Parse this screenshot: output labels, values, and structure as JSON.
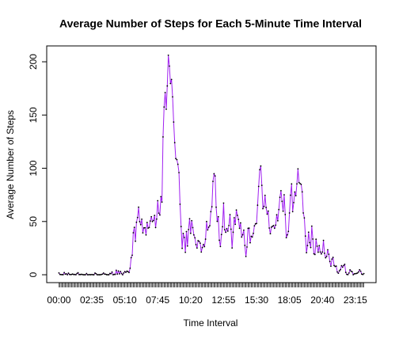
{
  "chart_data": {
    "type": "line",
    "title": "Average Number of Steps for Each 5-Minute Time Interval",
    "x_label": "Time Interval",
    "y_label": "Average Number of Steps",
    "line_color": "#a020f0",
    "point_color": "#000000",
    "ylim": [
      -7.4,
      214.9
    ],
    "yticks": [
      0,
      50,
      100,
      150,
      200
    ],
    "categories": [
      "00:00",
      null,
      null,
      null,
      null,
      null,
      null,
      null,
      null,
      null,
      null,
      null,
      null,
      null,
      null,
      null,
      null,
      null,
      null,
      null,
      null,
      null,
      null,
      null,
      null,
      null,
      null,
      null,
      null,
      null,
      null,
      "02:35",
      null,
      null,
      null,
      null,
      null,
      null,
      null,
      null,
      null,
      null,
      null,
      null,
      null,
      null,
      null,
      null,
      null,
      null,
      null,
      null,
      null,
      null,
      null,
      null,
      null,
      null,
      null,
      null,
      null,
      null,
      "05:10",
      null,
      null,
      null,
      null,
      null,
      null,
      null,
      null,
      null,
      null,
      null,
      null,
      null,
      null,
      null,
      null,
      null,
      null,
      null,
      null,
      null,
      null,
      null,
      null,
      null,
      null,
      null,
      null,
      null,
      null,
      "07:45",
      null,
      null,
      null,
      null,
      null,
      null,
      null,
      null,
      null,
      null,
      null,
      null,
      null,
      null,
      null,
      null,
      null,
      null,
      null,
      null,
      null,
      null,
      null,
      null,
      null,
      null,
      null,
      null,
      null,
      null,
      "10:20",
      null,
      null,
      null,
      null,
      null,
      null,
      null,
      null,
      null,
      null,
      null,
      null,
      null,
      null,
      null,
      null,
      null,
      null,
      null,
      null,
      null,
      null,
      null,
      null,
      null,
      null,
      null,
      null,
      null,
      null,
      "12:55",
      null,
      null,
      null,
      null,
      null,
      null,
      null,
      null,
      null,
      null,
      null,
      null,
      null,
      null,
      null,
      null,
      null,
      null,
      null,
      null,
      null,
      null,
      null,
      null,
      null,
      null,
      null,
      null,
      null,
      null,
      "15:30",
      null,
      null,
      null,
      null,
      null,
      null,
      null,
      null,
      null,
      null,
      null,
      null,
      null,
      null,
      null,
      null,
      null,
      null,
      null,
      null,
      null,
      null,
      null,
      null,
      null,
      null,
      null,
      null,
      null,
      null,
      "18:05",
      null,
      null,
      null,
      null,
      null,
      null,
      null,
      null,
      null,
      null,
      null,
      null,
      null,
      null,
      null,
      null,
      null,
      null,
      null,
      null,
      null,
      null,
      null,
      null,
      null,
      null,
      null,
      null,
      null,
      null,
      "20:40",
      null,
      null,
      null,
      null,
      null,
      null,
      null,
      null,
      null,
      null,
      null,
      null,
      null,
      null,
      null,
      null,
      null,
      null,
      null,
      null,
      null,
      null,
      null,
      null,
      null,
      null,
      null,
      null,
      null,
      null,
      "23:15",
      null,
      null,
      null,
      null,
      null,
      null,
      null,
      null
    ],
    "values": [
      1.72,
      0.34,
      0.13,
      0.15,
      0.08,
      2.09,
      0.53,
      0.87,
      0,
      1.47,
      0.3,
      0.13,
      0.32,
      0.68,
      0.15,
      0.34,
      0,
      1.11,
      1.83,
      0.17,
      0.17,
      0.38,
      0.26,
      0,
      0,
      0,
      1.13,
      0,
      0,
      0.13,
      0,
      0.23,
      0,
      0,
      1.55,
      0.94,
      0,
      0,
      0,
      0,
      0.21,
      0.62,
      1.62,
      0.58,
      0.49,
      0.08,
      0,
      0,
      1.19,
      0.94,
      2.57,
      0,
      0.34,
      0.36,
      4.11,
      0.66,
      3.49,
      0.83,
      3.11,
      1.11,
      0,
      1.57,
      3,
      2.25,
      3.32,
      2.96,
      2.09,
      6.06,
      16.02,
      18.34,
      39.45,
      44.49,
      31.49,
      49.26,
      53.77,
      63.45,
      49.96,
      47.08,
      52.15,
      39.34,
      44.02,
      44.17,
      37.36,
      49.04,
      43.81,
      44.38,
      50.51,
      54.51,
      49.92,
      50.98,
      55.68,
      44.32,
      52.26,
      69.55,
      57.85,
      56.15,
      73.38,
      68.21,
      129.43,
      157.53,
      171.15,
      155.4,
      177.3,
      206.17,
      195.92,
      179.57,
      183.4,
      167.02,
      143.45,
      124.04,
      109.11,
      108.11,
      103.72,
      95.96,
      66.21,
      45.23,
      24.79,
      38.75,
      34.98,
      21.06,
      40.57,
      26.98,
      42.42,
      52.66,
      38.92,
      50.79,
      44.28,
      37.42,
      34.7,
      28.34,
      25.09,
      31.94,
      31.36,
      29.68,
      21.32,
      25.55,
      28.38,
      26.47,
      33.43,
      49.98,
      42.04,
      44.6,
      46.04,
      59.26,
      63.87,
      87.7,
      94.85,
      92.77,
      63.4,
      50.17,
      54.47,
      32.42,
      26.53,
      37.74,
      45.06,
      67.28,
      42.34,
      39.89,
      43.26,
      40.98,
      46.25,
      56.43,
      42.75,
      25.13,
      39.96,
      53.55,
      47.32,
      60.81,
      55.75,
      51.96,
      43.58,
      48.7,
      35.47,
      37.55,
      41.85,
      27.51,
      17.11,
      26.08,
      43.62,
      43.77,
      30.02,
      36.08,
      35.49,
      38.85,
      45.96,
      47.75,
      48.13,
      65.32,
      82.91,
      98.66,
      102.11,
      83.96,
      62.13,
      64.13,
      74.55,
      63.17,
      56.91,
      59.77,
      43.87,
      38.57,
      44.66,
      45.45,
      46.21,
      43.68,
      46.62,
      56.3,
      50.72,
      61.23,
      72.72,
      78.94,
      68.94,
      59.66,
      75.09,
      56.51,
      34.77,
      37.45,
      40.68,
      58.02,
      74.7,
      85.32,
      59.26,
      67.77,
      77.7,
      74.25,
      85.34,
      99.45,
      86.58,
      85.6,
      84.87,
      77.83,
      58.04,
      53.36,
      36.32,
      20.72,
      27.4,
      40.02,
      30.21,
      25.55,
      45.66,
      33.53,
      19.62,
      19.02,
      33.34,
      26.81,
      21.17,
      27.3,
      21.34,
      19.55,
      21.32,
      32.3,
      20.15,
      15.94,
      17.23,
      23.45,
      19.25,
      12.45,
      8.02,
      14.66,
      16.3,
      8.68,
      7.79,
      8.13,
      2.62,
      1.45,
      3.68,
      4.81,
      8.51,
      7.08,
      8.7,
      9.75,
      2.21,
      0.32,
      0.11,
      1.6,
      4.6,
      3.3,
      2.85,
      0,
      0.83,
      0.96,
      1.2,
      1.58,
      2.6,
      4.7,
      3.3,
      0.64,
      0.23,
      1.08
    ]
  }
}
